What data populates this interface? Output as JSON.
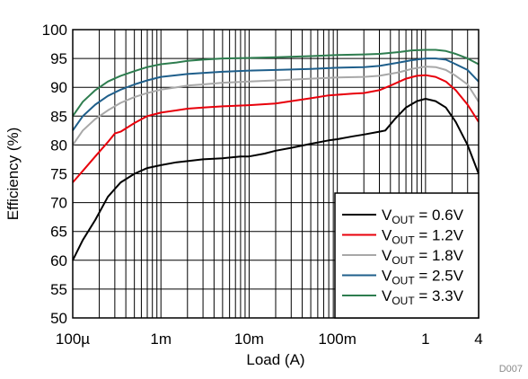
{
  "chart_data": {
    "type": "line",
    "figure_id": "D007",
    "xlabel": "Load (A)",
    "ylabel": "Efficiency (%)",
    "xscale": "log",
    "xlim": [
      0.0001,
      4
    ],
    "ylim": [
      50,
      100
    ],
    "grid": true,
    "legend_position": "bottom-right",
    "x_ticks": [
      {
        "value": 0.0001,
        "label": "100µ"
      },
      {
        "value": 0.001,
        "label": "1m"
      },
      {
        "value": 0.01,
        "label": "10m"
      },
      {
        "value": 0.1,
        "label": "100m"
      },
      {
        "value": 1,
        "label": "1"
      },
      {
        "value": 4,
        "label": "4"
      }
    ],
    "y_ticks": [
      50,
      55,
      60,
      65,
      70,
      75,
      80,
      85,
      90,
      95,
      100
    ],
    "series": [
      {
        "name_main": "V",
        "name_sub": "OUT",
        "name_rest": " = 0.6V",
        "color": "#000000",
        "points": [
          [
            0.0001,
            60
          ],
          [
            0.00013,
            63.5
          ],
          [
            0.00018,
            67
          ],
          [
            0.00025,
            71
          ],
          [
            0.00035,
            73.5
          ],
          [
            0.0005,
            75
          ],
          [
            0.0007,
            76
          ],
          [
            0.001,
            76.5
          ],
          [
            0.0015,
            77
          ],
          [
            0.002,
            77.2
          ],
          [
            0.003,
            77.5
          ],
          [
            0.005,
            77.7
          ],
          [
            0.008,
            78
          ],
          [
            0.01,
            78
          ],
          [
            0.015,
            78.5
          ],
          [
            0.02,
            79
          ],
          [
            0.03,
            79.5
          ],
          [
            0.05,
            80.2
          ],
          [
            0.08,
            80.8
          ],
          [
            0.1,
            81
          ],
          [
            0.15,
            81.5
          ],
          [
            0.2,
            81.8
          ],
          [
            0.3,
            82.3
          ],
          [
            0.35,
            82.5
          ],
          [
            0.45,
            84.5
          ],
          [
            0.6,
            86.5
          ],
          [
            0.8,
            87.6
          ],
          [
            1,
            88
          ],
          [
            1.3,
            87.6
          ],
          [
            1.7,
            86.5
          ],
          [
            2.2,
            84
          ],
          [
            3,
            80
          ],
          [
            4,
            75
          ]
        ]
      },
      {
        "name_main": "V",
        "name_sub": "OUT",
        "name_rest": " = 1.2V",
        "color": "#e8000b",
        "points": [
          [
            0.0001,
            73.5
          ],
          [
            0.00013,
            75.5
          ],
          [
            0.00018,
            78
          ],
          [
            0.00025,
            80.5
          ],
          [
            0.0003,
            82
          ],
          [
            0.00035,
            82.3
          ],
          [
            0.0005,
            83.8
          ],
          [
            0.0007,
            85
          ],
          [
            0.001,
            85.6
          ],
          [
            0.0015,
            86
          ],
          [
            0.002,
            86.3
          ],
          [
            0.003,
            86.5
          ],
          [
            0.005,
            86.7
          ],
          [
            0.01,
            86.9
          ],
          [
            0.02,
            87.2
          ],
          [
            0.03,
            87.6
          ],
          [
            0.05,
            88.1
          ],
          [
            0.08,
            88.6
          ],
          [
            0.1,
            88.7
          ],
          [
            0.15,
            88.9
          ],
          [
            0.2,
            89
          ],
          [
            0.3,
            89.5
          ],
          [
            0.4,
            90.3
          ],
          [
            0.6,
            91.5
          ],
          [
            0.8,
            92
          ],
          [
            1,
            92.1
          ],
          [
            1.3,
            91.8
          ],
          [
            1.7,
            91
          ],
          [
            2.2,
            89.5
          ],
          [
            3,
            87
          ],
          [
            4,
            84
          ]
        ]
      },
      {
        "name_main": "V",
        "name_sub": "OUT",
        "name_rest": " = 1.8V",
        "color": "#a8a8a8",
        "points": [
          [
            0.0001,
            80
          ],
          [
            0.00013,
            82.5
          ],
          [
            0.00018,
            84.5
          ],
          [
            0.00025,
            86
          ],
          [
            0.00035,
            87.3
          ],
          [
            0.0005,
            88.3
          ],
          [
            0.0007,
            89
          ],
          [
            0.001,
            89.6
          ],
          [
            0.0015,
            90
          ],
          [
            0.002,
            90.3
          ],
          [
            0.003,
            90.5
          ],
          [
            0.005,
            90.8
          ],
          [
            0.01,
            91
          ],
          [
            0.02,
            91.2
          ],
          [
            0.05,
            91.5
          ],
          [
            0.1,
            91.7
          ],
          [
            0.2,
            91.8
          ],
          [
            0.3,
            92
          ],
          [
            0.5,
            92.6
          ],
          [
            0.7,
            93.2
          ],
          [
            1,
            93.6
          ],
          [
            1.3,
            93.5
          ],
          [
            1.7,
            93
          ],
          [
            2.2,
            92
          ],
          [
            3,
            90.5
          ],
          [
            4,
            87.5
          ]
        ]
      },
      {
        "name_main": "V",
        "name_sub": "OUT",
        "name_rest": " = 2.5V",
        "color": "#1f5f8b",
        "points": [
          [
            0.0001,
            82.5
          ],
          [
            0.00013,
            85
          ],
          [
            0.00018,
            87
          ],
          [
            0.00025,
            88.5
          ],
          [
            0.00035,
            89.6
          ],
          [
            0.0005,
            90.5
          ],
          [
            0.0007,
            91.2
          ],
          [
            0.001,
            91.8
          ],
          [
            0.0015,
            92.1
          ],
          [
            0.002,
            92.3
          ],
          [
            0.003,
            92.5
          ],
          [
            0.005,
            92.7
          ],
          [
            0.01,
            92.9
          ],
          [
            0.02,
            93
          ],
          [
            0.05,
            93.2
          ],
          [
            0.1,
            93.4
          ],
          [
            0.2,
            93.5
          ],
          [
            0.3,
            93.7
          ],
          [
            0.5,
            94.3
          ],
          [
            0.7,
            94.7
          ],
          [
            1,
            95
          ],
          [
            1.3,
            95
          ],
          [
            1.7,
            94.8
          ],
          [
            2.2,
            94
          ],
          [
            3,
            93
          ],
          [
            4,
            91
          ]
        ]
      },
      {
        "name_main": "V",
        "name_sub": "OUT",
        "name_rest": " = 3.3V",
        "color": "#2e7d4f",
        "points": [
          [
            0.0001,
            85
          ],
          [
            0.00013,
            87.5
          ],
          [
            0.00018,
            89.5
          ],
          [
            0.00025,
            91
          ],
          [
            0.00035,
            92
          ],
          [
            0.0005,
            92.8
          ],
          [
            0.0007,
            93.5
          ],
          [
            0.001,
            94
          ],
          [
            0.0015,
            94.3
          ],
          [
            0.002,
            94.6
          ],
          [
            0.003,
            94.8
          ],
          [
            0.005,
            95
          ],
          [
            0.01,
            95.1
          ],
          [
            0.02,
            95.2
          ],
          [
            0.05,
            95.4
          ],
          [
            0.1,
            95.6
          ],
          [
            0.2,
            95.7
          ],
          [
            0.3,
            95.8
          ],
          [
            0.5,
            96.1
          ],
          [
            0.7,
            96.4
          ],
          [
            1,
            96.5
          ],
          [
            1.3,
            96.5
          ],
          [
            1.7,
            96.3
          ],
          [
            2.2,
            95.8
          ],
          [
            3,
            95
          ],
          [
            4,
            94
          ]
        ]
      }
    ]
  }
}
